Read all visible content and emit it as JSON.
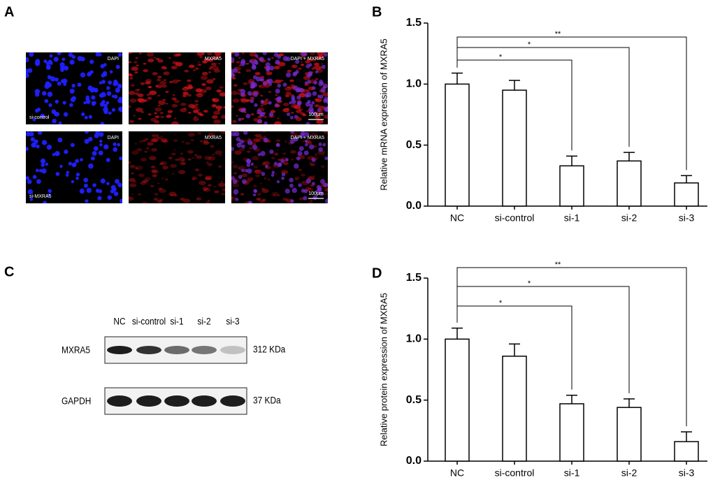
{
  "panel_a": {
    "label": "A",
    "columns": [
      "DAPI",
      "MXRA5",
      "DAPI + MXRA5"
    ],
    "rows": [
      "si-control",
      "si-MXRA5"
    ],
    "scale_bar": "100μm"
  },
  "panel_c": {
    "label": "C",
    "lanes": [
      "NC",
      "si-control",
      "si-1",
      "si-2",
      "si-3"
    ],
    "proteins": [
      {
        "name": "MXRA5",
        "size": "312 KDa"
      },
      {
        "name": "GAPDH",
        "size": "37 KDa"
      }
    ]
  },
  "chart_data": [
    {
      "type": "bar",
      "panel": "B",
      "ylabel": "Relative  mRNA expression of MXRA5",
      "categories": [
        "NC",
        "si-control",
        "si-1",
        "si-2",
        "si-3"
      ],
      "values": [
        1.0,
        0.95,
        0.33,
        0.37,
        0.19
      ],
      "errors": [
        0.09,
        0.08,
        0.08,
        0.07,
        0.06
      ],
      "color": "#ffffff",
      "edgecolor": "#000000",
      "ylim": [
        0,
        1.5
      ],
      "yticks": [
        {
          "value": 0,
          "label": "0.0"
        },
        {
          "value": 0.5,
          "label": "0.5"
        },
        {
          "value": 1,
          "label": "1.0"
        },
        {
          "value": 1.5,
          "label": "1.5"
        }
      ],
      "significance": [
        {
          "from": 0,
          "to": 2,
          "label": "*"
        },
        {
          "from": 0,
          "to": 3,
          "label": "*"
        },
        {
          "from": 0,
          "to": 4,
          "label": "**"
        }
      ]
    },
    {
      "type": "bar",
      "panel": "D",
      "ylabel": "Relative protein expression of MXRA5",
      "categories": [
        "NC",
        "si-control",
        "si-1",
        "si-2",
        "si-3"
      ],
      "values": [
        1.0,
        0.86,
        0.47,
        0.44,
        0.16
      ],
      "errors": [
        0.09,
        0.1,
        0.07,
        0.07,
        0.08
      ],
      "color": "#ffffff",
      "edgecolor": "#000000",
      "ylim": [
        0,
        1.5
      ],
      "yticks": [
        {
          "value": 0,
          "label": "0.0"
        },
        {
          "value": 0.5,
          "label": "0.5"
        },
        {
          "value": 1,
          "label": "1.0"
        },
        {
          "value": 1.5,
          "label": "1.5"
        }
      ],
      "significance": [
        {
          "from": 0,
          "to": 2,
          "label": "*"
        },
        {
          "from": 0,
          "to": 3,
          "label": "*"
        },
        {
          "from": 0,
          "to": 4,
          "label": "**"
        }
      ]
    }
  ]
}
